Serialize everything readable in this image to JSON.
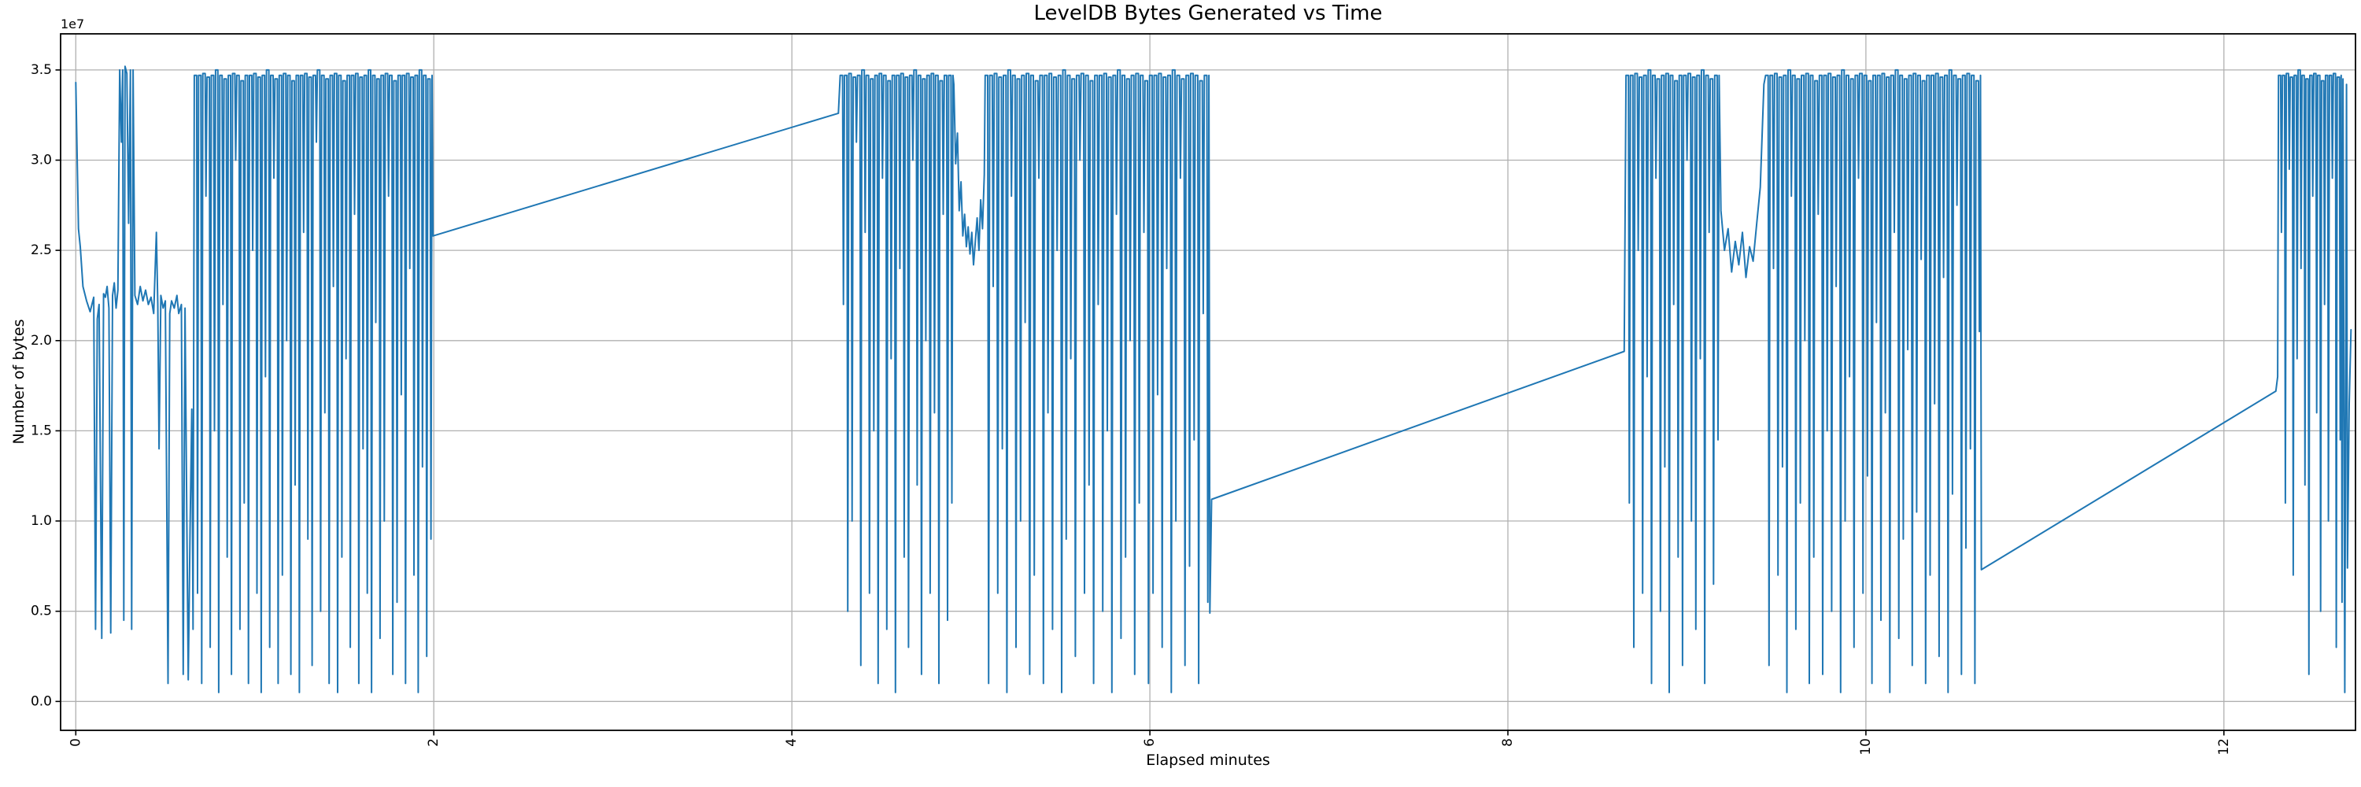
{
  "chart_data": {
    "type": "line",
    "title": "LevelDB Bytes Generated vs Time",
    "xlabel": "Elapsed minutes",
    "ylabel": "Number of bytes",
    "y_offset_label": "1e7",
    "xlim": [
      -0.085,
      12.735
    ],
    "ylim_1e7": [
      -0.16,
      3.7
    ],
    "x_tick_values": [
      0,
      2,
      4,
      6,
      8,
      10,
      12
    ],
    "x_tick_labels": [
      "0",
      "2",
      "4",
      "6",
      "8",
      "10",
      "12"
    ],
    "y_tick_values": [
      0.0,
      0.5,
      1.0,
      1.5,
      2.0,
      2.5,
      3.0,
      3.5
    ],
    "y_tick_labels": [
      "0.0",
      "0.5",
      "1.0",
      "1.5",
      "2.0",
      "2.5",
      "3.0",
      "3.5"
    ],
    "grid": true,
    "legend": "none",
    "line_color": "#1f77b4",
    "grid_color": "#b0b0b0",
    "spine_color": "#000000",
    "text_color": "#000000",
    "background_color": "#ffffff",
    "y_unit": "1e7 bytes",
    "burst_tops": [
      3.47,
      3.47,
      3.48,
      3.46,
      3.47,
      3.5,
      3.47,
      3.45,
      3.47,
      3.48,
      3.47,
      3.44
    ],
    "segments": [
      {
        "type": "points",
        "pts": [
          [
            0,
            3.43
          ],
          [
            0.015,
            2.62
          ],
          [
            0.025,
            2.52
          ],
          [
            0.04,
            2.3
          ],
          [
            0.06,
            2.22
          ],
          [
            0.08,
            2.16
          ],
          [
            0.1,
            2.24
          ],
          [
            0.11,
            0.4
          ],
          [
            0.12,
            2.12
          ],
          [
            0.13,
            2.2
          ],
          [
            0.145,
            0.35
          ],
          [
            0.155,
            2.26
          ],
          [
            0.165,
            2.24
          ],
          [
            0.175,
            2.3
          ],
          [
            0.185,
            2.18
          ],
          [
            0.195,
            0.38
          ],
          [
            0.205,
            2.25
          ],
          [
            0.215,
            2.32
          ],
          [
            0.225,
            2.18
          ],
          [
            0.235,
            2.28
          ],
          [
            0.245,
            3.5
          ],
          [
            0.255,
            3.1
          ],
          [
            0.262,
            3.5
          ],
          [
            0.268,
            0.45
          ],
          [
            0.275,
            3.52
          ],
          [
            0.285,
            3.48
          ],
          [
            0.295,
            2.65
          ],
          [
            0.305,
            3.5
          ],
          [
            0.312,
            0.4
          ],
          [
            0.32,
            3.5
          ],
          [
            0.33,
            2.25
          ],
          [
            0.345,
            2.2
          ],
          [
            0.36,
            2.3
          ],
          [
            0.375,
            2.22
          ],
          [
            0.39,
            2.28
          ],
          [
            0.405,
            2.2
          ],
          [
            0.42,
            2.24
          ],
          [
            0.435,
            2.15
          ],
          [
            0.45,
            2.6
          ],
          [
            0.458,
            2.2
          ],
          [
            0.465,
            1.4
          ],
          [
            0.475,
            2.25
          ],
          [
            0.488,
            2.18
          ],
          [
            0.5,
            2.22
          ],
          [
            0.515,
            0.1
          ],
          [
            0.525,
            2.15
          ],
          [
            0.535,
            2.22
          ],
          [
            0.55,
            2.18
          ],
          [
            0.565,
            2.25
          ],
          [
            0.575,
            2.15
          ],
          [
            0.59,
            2.2
          ],
          [
            0.6,
            0.15
          ],
          [
            0.61,
            2.18
          ],
          [
            0.62,
            1.0
          ],
          [
            0.628,
            0.12
          ],
          [
            0.638,
            0.95
          ],
          [
            0.648,
            1.62
          ],
          [
            0.655,
            0.4
          ]
        ]
      },
      {
        "type": "burst",
        "x0": 0.662,
        "x1": 1.99,
        "dips": [
          0.6,
          0.1,
          2.8,
          0.3,
          1.5,
          0.05,
          2.2,
          0.8,
          0.15,
          3.0,
          0.4,
          1.1,
          0.1,
          2.5,
          0.6,
          0.05,
          1.8,
          0.3,
          2.9,
          0.1,
          0.7,
          2.0,
          0.15,
          1.2,
          0.05,
          2.6,
          0.9,
          0.2,
          3.1,
          0.5,
          1.6,
          0.1,
          2.3,
          0.05,
          0.8,
          1.9,
          0.3,
          2.7,
          0.1,
          1.4,
          0.6,
          0.05,
          2.1,
          0.35,
          1.0,
          2.8,
          0.15,
          0.55,
          1.7,
          0.1,
          2.4,
          0.7,
          0.05,
          1.3,
          0.25,
          0.9
        ]
      },
      {
        "type": "points",
        "pts": [
          [
            1.995,
            2.58
          ],
          [
            4.26,
            3.26
          ]
        ]
      },
      {
        "type": "burst",
        "x0": 4.27,
        "x1": 4.9,
        "dips": [
          2.2,
          0.5,
          1.0,
          3.1,
          0.2,
          2.6,
          0.6,
          1.5,
          0.1,
          2.9,
          0.4,
          1.9,
          0.05,
          2.4,
          0.8,
          0.3,
          3.0,
          1.2,
          0.15,
          2.0,
          0.6,
          1.6,
          0.1,
          2.7,
          0.45,
          1.1
        ]
      },
      {
        "type": "points",
        "pts": [
          [
            4.905,
            3.42
          ],
          [
            4.915,
            2.98
          ],
          [
            4.925,
            3.15
          ],
          [
            4.935,
            2.72
          ],
          [
            4.945,
            2.88
          ],
          [
            4.955,
            2.58
          ],
          [
            4.965,
            2.7
          ],
          [
            4.975,
            2.52
          ],
          [
            4.985,
            2.63
          ],
          [
            4.995,
            2.48
          ],
          [
            5.005,
            2.6
          ],
          [
            5.015,
            2.42
          ],
          [
            5.025,
            2.55
          ],
          [
            5.035,
            2.68
          ],
          [
            5.045,
            2.5
          ],
          [
            5.055,
            2.78
          ],
          [
            5.065,
            2.62
          ],
          [
            5.075,
            2.92
          ]
        ]
      },
      {
        "type": "burst",
        "x0": 5.08,
        "x1": 6.33,
        "dips": [
          0.1,
          2.3,
          0.6,
          1.4,
          0.05,
          2.8,
          0.3,
          1.0,
          2.1,
          0.15,
          0.7,
          2.9,
          0.1,
          1.6,
          0.4,
          2.5,
          0.05,
          0.9,
          1.9,
          0.25,
          3.0,
          0.6,
          1.2,
          0.1,
          2.2,
          0.5,
          1.5,
          0.05,
          2.7,
          0.35,
          0.8,
          2.0,
          0.15,
          1.1,
          2.6,
          0.1,
          0.6,
          1.7,
          0.3,
          2.4,
          0.05,
          1.0,
          2.9,
          0.2,
          0.75,
          1.45,
          0.1,
          2.15,
          0.55
        ]
      },
      {
        "type": "points",
        "pts": [
          [
            6.335,
            0.49
          ],
          [
            6.345,
            1.12
          ],
          [
            8.65,
            1.94
          ]
        ]
      },
      {
        "type": "burst",
        "x0": 8.66,
        "x1": 9.18,
        "dips": [
          1.1,
          0.3,
          2.5,
          0.6,
          1.8,
          0.1,
          2.9,
          0.5,
          1.3,
          0.05,
          2.2,
          0.8,
          0.2,
          3.0,
          1.0,
          0.4,
          1.9,
          0.1,
          2.6,
          0.65,
          1.45
        ]
      },
      {
        "type": "points",
        "pts": [
          [
            9.19,
            2.72
          ],
          [
            9.21,
            2.5
          ],
          [
            9.23,
            2.62
          ],
          [
            9.25,
            2.38
          ],
          [
            9.27,
            2.55
          ],
          [
            9.29,
            2.42
          ],
          [
            9.31,
            2.6
          ],
          [
            9.33,
            2.35
          ],
          [
            9.35,
            2.52
          ],
          [
            9.37,
            2.44
          ],
          [
            9.39,
            2.65
          ],
          [
            9.41,
            2.85
          ],
          [
            9.43,
            3.42
          ]
        ]
      },
      {
        "type": "burst",
        "x0": 9.44,
        "x1": 10.64,
        "dips": [
          0.2,
          2.4,
          0.7,
          1.3,
          0.05,
          2.8,
          0.4,
          1.1,
          2.0,
          0.1,
          0.8,
          2.7,
          0.15,
          1.5,
          0.5,
          2.3,
          0.05,
          1.0,
          1.8,
          0.3,
          2.9,
          0.6,
          1.25,
          0.1,
          2.1,
          0.45,
          1.6,
          0.05,
          2.6,
          0.35,
          0.9,
          1.95,
          0.2,
          1.05,
          2.45,
          0.1,
          0.7,
          1.65,
          0.25,
          2.35,
          0.05,
          1.15,
          2.75,
          0.15,
          0.85,
          1.4,
          0.1,
          2.05
        ]
      },
      {
        "type": "points",
        "pts": [
          [
            10.645,
            0.73
          ],
          [
            12.29,
            1.72
          ],
          [
            12.3,
            1.8
          ]
        ]
      },
      {
        "type": "burst",
        "x0": 12.305,
        "x1": 12.655,
        "dips": [
          2.6,
          1.1,
          2.95,
          0.7,
          1.9,
          2.4,
          1.2,
          0.15,
          2.8,
          1.6,
          0.5,
          2.2,
          1.0,
          2.9,
          0.3,
          1.45
        ]
      },
      {
        "type": "points",
        "pts": [
          [
            12.66,
            0.55
          ],
          [
            12.665,
            3.45
          ],
          [
            12.675,
            0.05
          ],
          [
            12.685,
            3.42
          ],
          [
            12.69,
            0.74
          ],
          [
            12.7,
            1.65
          ],
          [
            12.71,
            2.06
          ]
        ]
      }
    ]
  }
}
